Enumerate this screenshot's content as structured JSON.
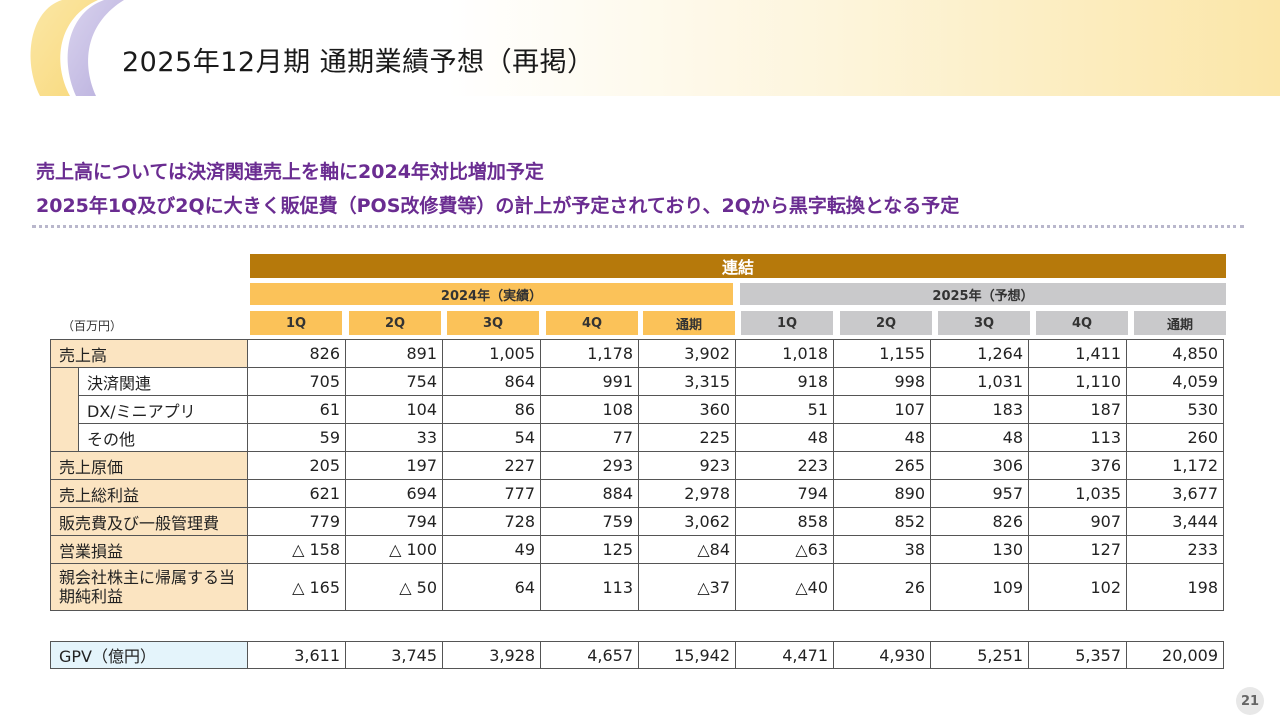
{
  "title": "2025年12月期 通期業績予想（再掲）",
  "lead": {
    "line1": "売上高については決済関連売上を軸に2024年対比増加予定",
    "line2": "2025年1Q及び2Qに大きく販促費（POS改修費等）の計上が予定されており、2Qから黒字転換となる予定"
  },
  "table": {
    "header": "連結",
    "unit": "（百万円）",
    "group_actual": "2024年（実績）",
    "group_forecast": "2025年（予想）",
    "columns": [
      "1Q",
      "2Q",
      "3Q",
      "4Q",
      "通期",
      "1Q",
      "2Q",
      "3Q",
      "4Q",
      "通期"
    ],
    "rows": [
      {
        "label": "売上高",
        "values": [
          "826",
          "891",
          "1,005",
          "1,178",
          "3,902",
          "1,018",
          "1,155",
          "1,264",
          "1,411",
          "4,850"
        ]
      },
      {
        "label": "決済関連",
        "values": [
          "705",
          "754",
          "864",
          "991",
          "3,315",
          "918",
          "998",
          "1,031",
          "1,110",
          "4,059"
        ]
      },
      {
        "label": "DX/ミニアプリ",
        "values": [
          "61",
          "104",
          "86",
          "108",
          "360",
          "51",
          "107",
          "183",
          "187",
          "530"
        ]
      },
      {
        "label": "その他",
        "values": [
          "59",
          "33",
          "54",
          "77",
          "225",
          "48",
          "48",
          "48",
          "113",
          "260"
        ]
      },
      {
        "label": "売上原価",
        "values": [
          "205",
          "197",
          "227",
          "293",
          "923",
          "223",
          "265",
          "306",
          "376",
          "1,172"
        ]
      },
      {
        "label": "売上総利益",
        "values": [
          "621",
          "694",
          "777",
          "884",
          "2,978",
          "794",
          "890",
          "957",
          "1,035",
          "3,677"
        ]
      },
      {
        "label": "販売費及び一般管理費",
        "values": [
          "779",
          "794",
          "728",
          "759",
          "3,062",
          "858",
          "852",
          "826",
          "907",
          "3,444"
        ]
      },
      {
        "label": "営業損益",
        "values": [
          "△ 158",
          "△ 100",
          "49",
          "125",
          "△84",
          "△63",
          "38",
          "130",
          "127",
          "233"
        ]
      },
      {
        "label": "親会社株主に帰属する当期純利益",
        "values": [
          "△ 165",
          "△ 50",
          "64",
          "113",
          "△37",
          "△40",
          "26",
          "109",
          "102",
          "198"
        ]
      }
    ],
    "gpv": {
      "label": "GPV（億円）",
      "values": [
        "3,611",
        "3,745",
        "3,928",
        "4,657",
        "15,942",
        "4,471",
        "4,930",
        "5,251",
        "5,357",
        "20,009"
      ]
    }
  },
  "page_number": "21",
  "colors": {
    "title_accent": "#6a2c91",
    "header_main": "#b6790b",
    "header_actual": "#fbc259",
    "header_forecast": "#c9c9cb",
    "label_fill": "#fbe4c1",
    "gpv_fill": "#e4f4fb"
  }
}
